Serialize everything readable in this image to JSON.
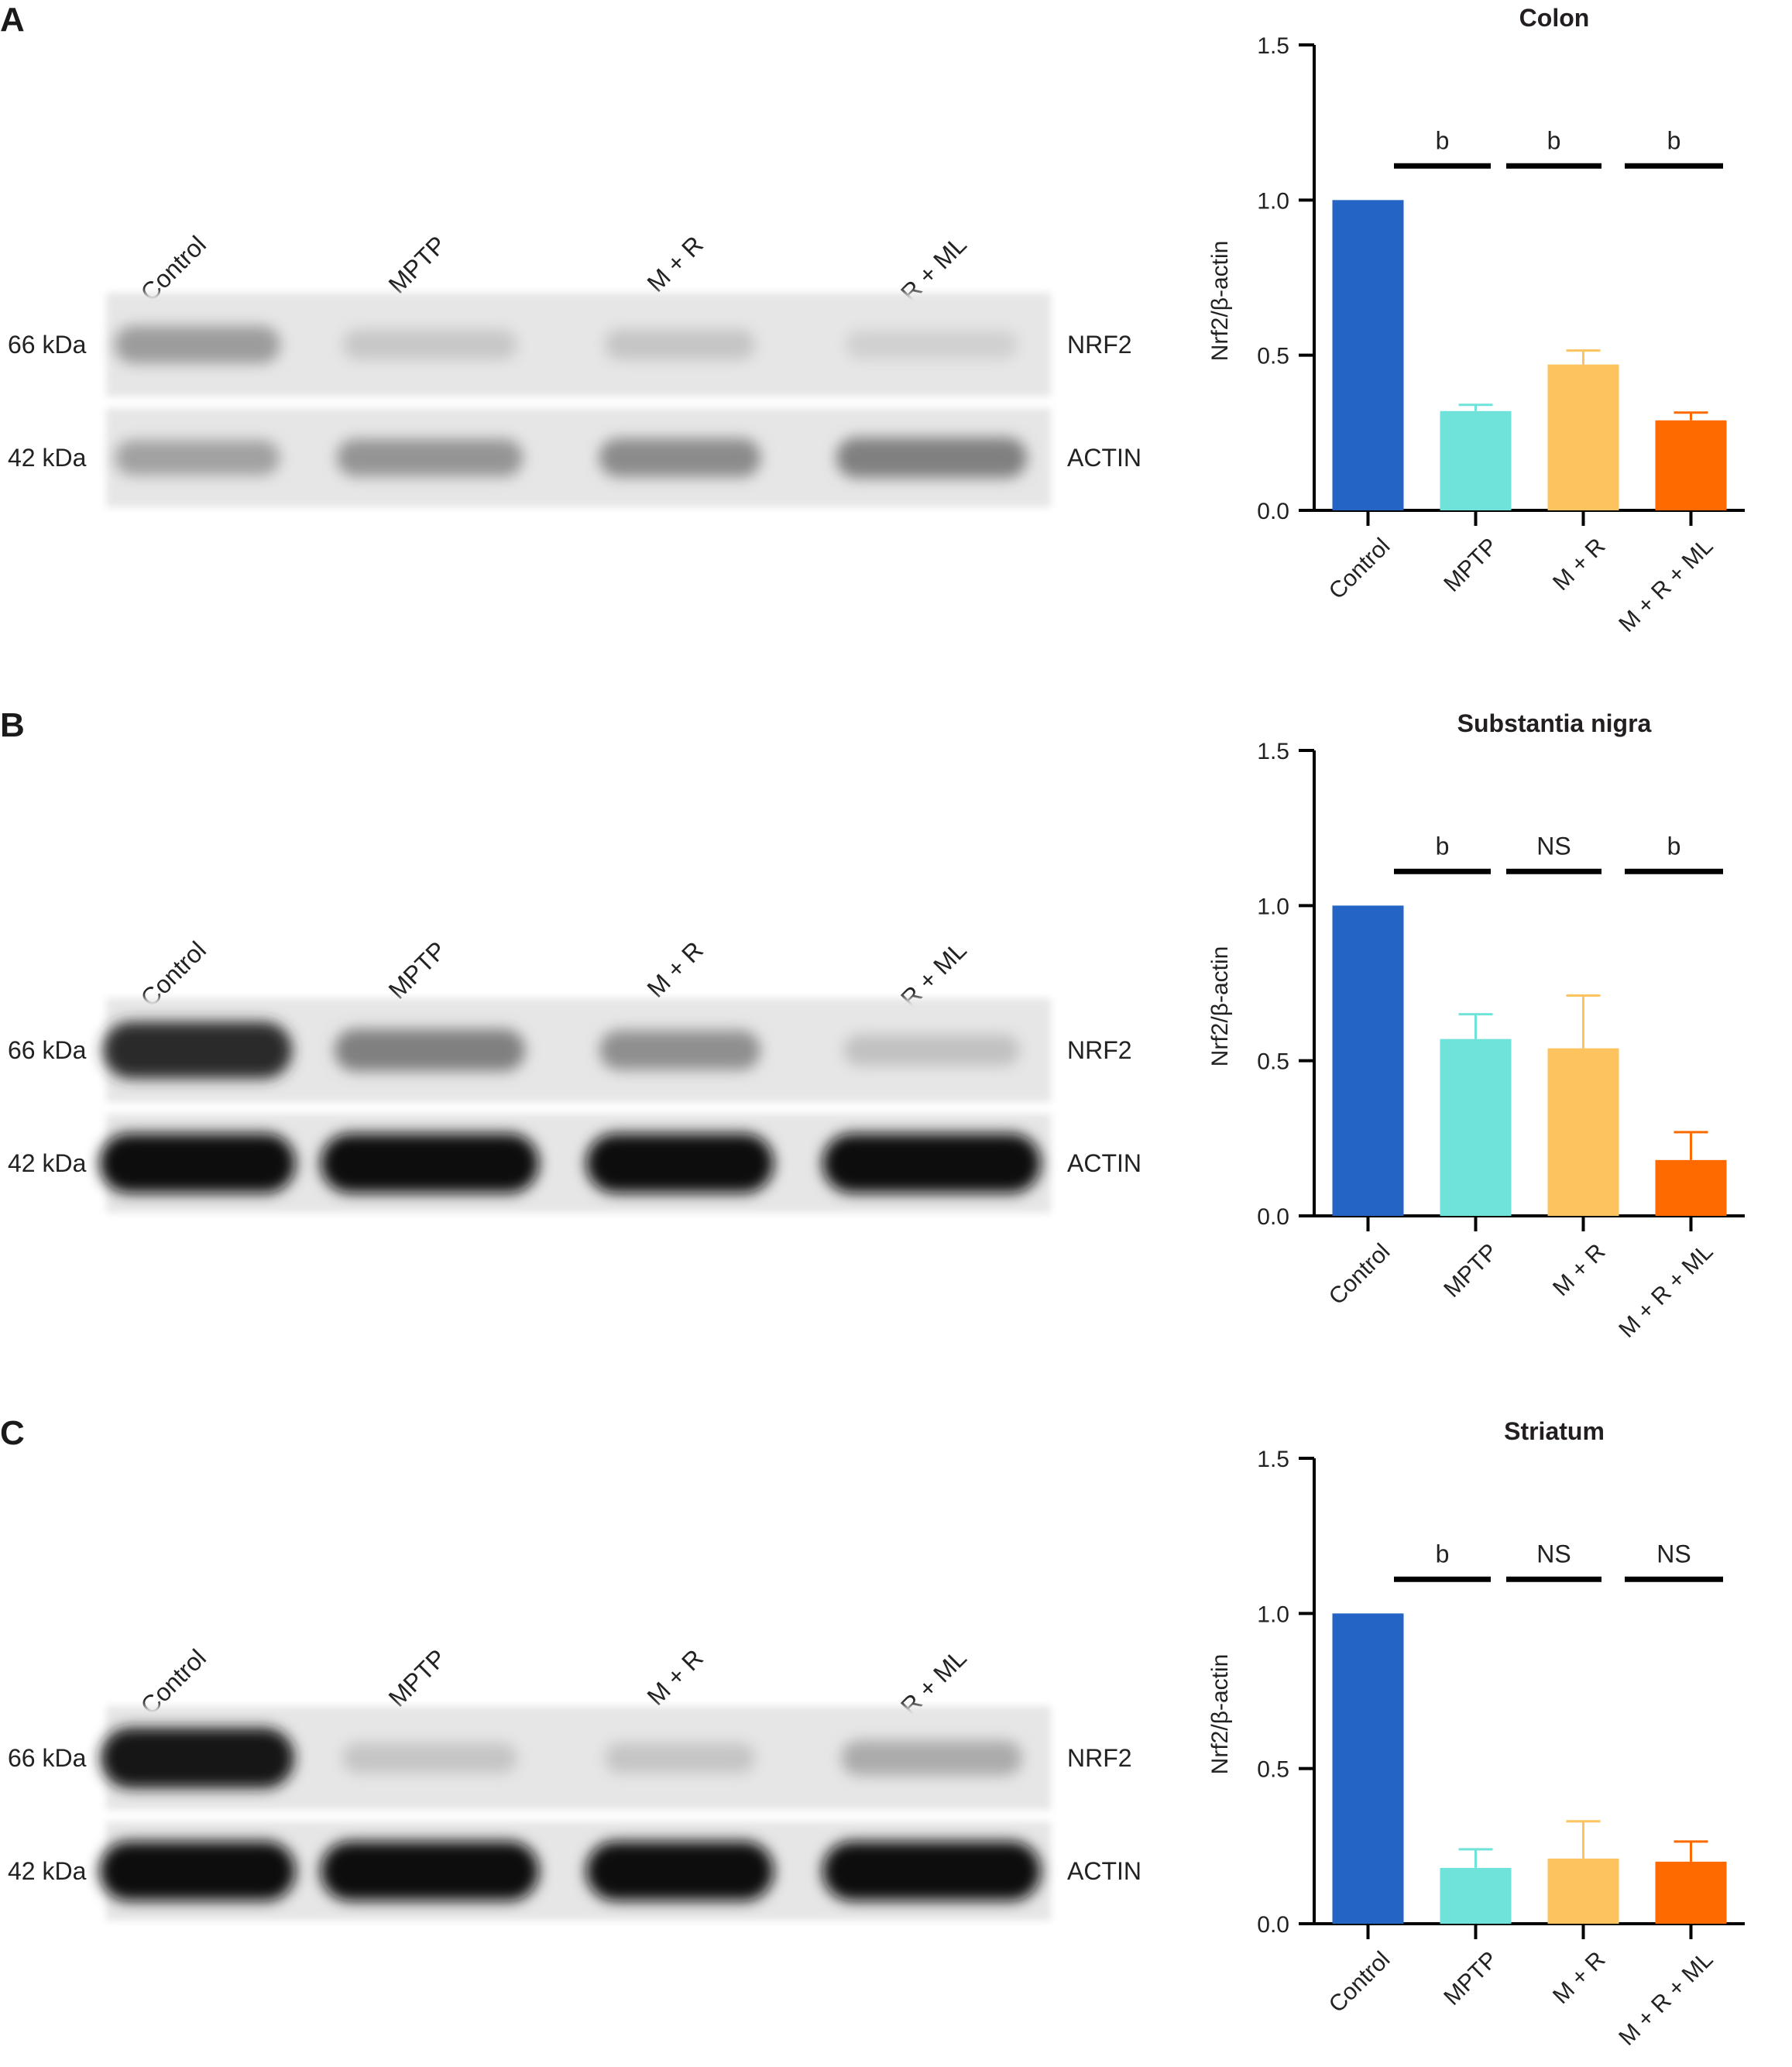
{
  "blot": {
    "lanes": [
      "Control",
      "MPTP",
      "M + R",
      "M + R + ML"
    ],
    "rows": [
      {
        "kda": "66 kDa",
        "protein": "NRF2"
      },
      {
        "kda": "42 kDa",
        "protein": "ACTIN"
      }
    ]
  },
  "colors": {
    "Control": "#2364c4",
    "MPTP": "#6fe3d9",
    "M + R": "#fcc35f",
    "M + R + ML": "#ff6a00"
  },
  "panels": [
    {
      "letter": "A",
      "band_intensity": {
        "NRF2": [
          0.32,
          0.12,
          0.13,
          0.08
        ],
        "ACTIN": [
          0.3,
          0.36,
          0.4,
          0.45
        ]
      },
      "chart_data": {
        "type": "bar",
        "title": "Colon",
        "ylabel": "Nrf2/β-actin",
        "xlabel": "",
        "categories": [
          "Control",
          "MPTP",
          "M + R",
          "M + R + ML"
        ],
        "values": [
          1.0,
          0.32,
          0.47,
          0.29
        ],
        "errors": [
          0,
          0.02,
          0.045,
          0.025
        ],
        "ylim": [
          0,
          1.5
        ],
        "yticks": [
          "0.0",
          "0.5",
          "1.0",
          "1.5"
        ],
        "significance": [
          "b",
          "b",
          "b"
        ],
        "grid": false,
        "legend": "none"
      }
    },
    {
      "letter": "B",
      "band_intensity": {
        "NRF2": [
          0.85,
          0.45,
          0.38,
          0.15
        ],
        "ACTIN": [
          1.0,
          1.0,
          1.0,
          1.0
        ]
      },
      "chart_data": {
        "type": "bar",
        "title": "Substantia nigra",
        "ylabel": "Nrf2/β-actin",
        "xlabel": "",
        "categories": [
          "Control",
          "MPTP",
          "M + R",
          "M + R + ML"
        ],
        "values": [
          1.0,
          0.57,
          0.54,
          0.18
        ],
        "errors": [
          0,
          0.08,
          0.17,
          0.09
        ],
        "ylim": [
          0,
          1.5
        ],
        "yticks": [
          "0.0",
          "0.5",
          "1.0",
          "1.5"
        ],
        "significance": [
          "b",
          "NS",
          "b"
        ],
        "grid": false,
        "legend": "none"
      }
    },
    {
      "letter": "C",
      "band_intensity": {
        "NRF2": [
          0.95,
          0.13,
          0.13,
          0.25
        ],
        "ACTIN": [
          1.0,
          1.0,
          1.0,
          1.0
        ]
      },
      "chart_data": {
        "type": "bar",
        "title": "Striatum",
        "ylabel": "Nrf2/β-actin",
        "xlabel": "",
        "categories": [
          "Control",
          "MPTP",
          "M + R",
          "M + R + ML"
        ],
        "values": [
          1.0,
          0.18,
          0.21,
          0.2
        ],
        "errors": [
          0,
          0.06,
          0.12,
          0.065
        ],
        "ylim": [
          0,
          1.5
        ],
        "yticks": [
          "0.0",
          "0.5",
          "1.0",
          "1.5"
        ],
        "significance": [
          "b",
          "NS",
          "NS"
        ],
        "grid": false,
        "legend": "none"
      }
    }
  ]
}
